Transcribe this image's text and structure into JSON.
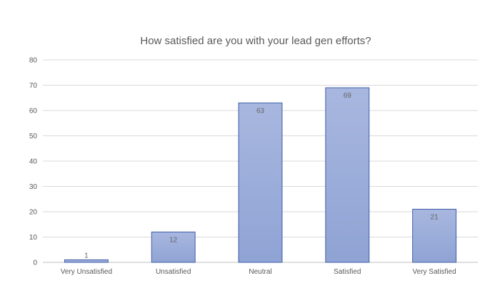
{
  "chart_data": {
    "type": "bar",
    "title": "How satisfied are you with your lead gen efforts?",
    "xlabel": "",
    "ylabel": "",
    "categories": [
      "Very Unsatisfied",
      "Unsatisfied",
      "Neutral",
      "Satisfied",
      "Very Satisfied"
    ],
    "values": [
      1,
      12,
      63,
      69,
      21
    ],
    "data_labels": [
      "1",
      "12",
      "63",
      "69",
      "21"
    ],
    "ylim": [
      0,
      80
    ],
    "yticks": [
      0,
      10,
      20,
      30,
      40,
      50,
      60,
      70,
      80
    ],
    "grid": true,
    "legend": "none",
    "colors": {
      "bar_fill_top": "#a8b7df",
      "bar_fill_bottom": "#8fa3d4",
      "bar_stroke": "#3f5ea8",
      "grid": "#d9d9d9",
      "axis": "#bfbfbf"
    }
  }
}
